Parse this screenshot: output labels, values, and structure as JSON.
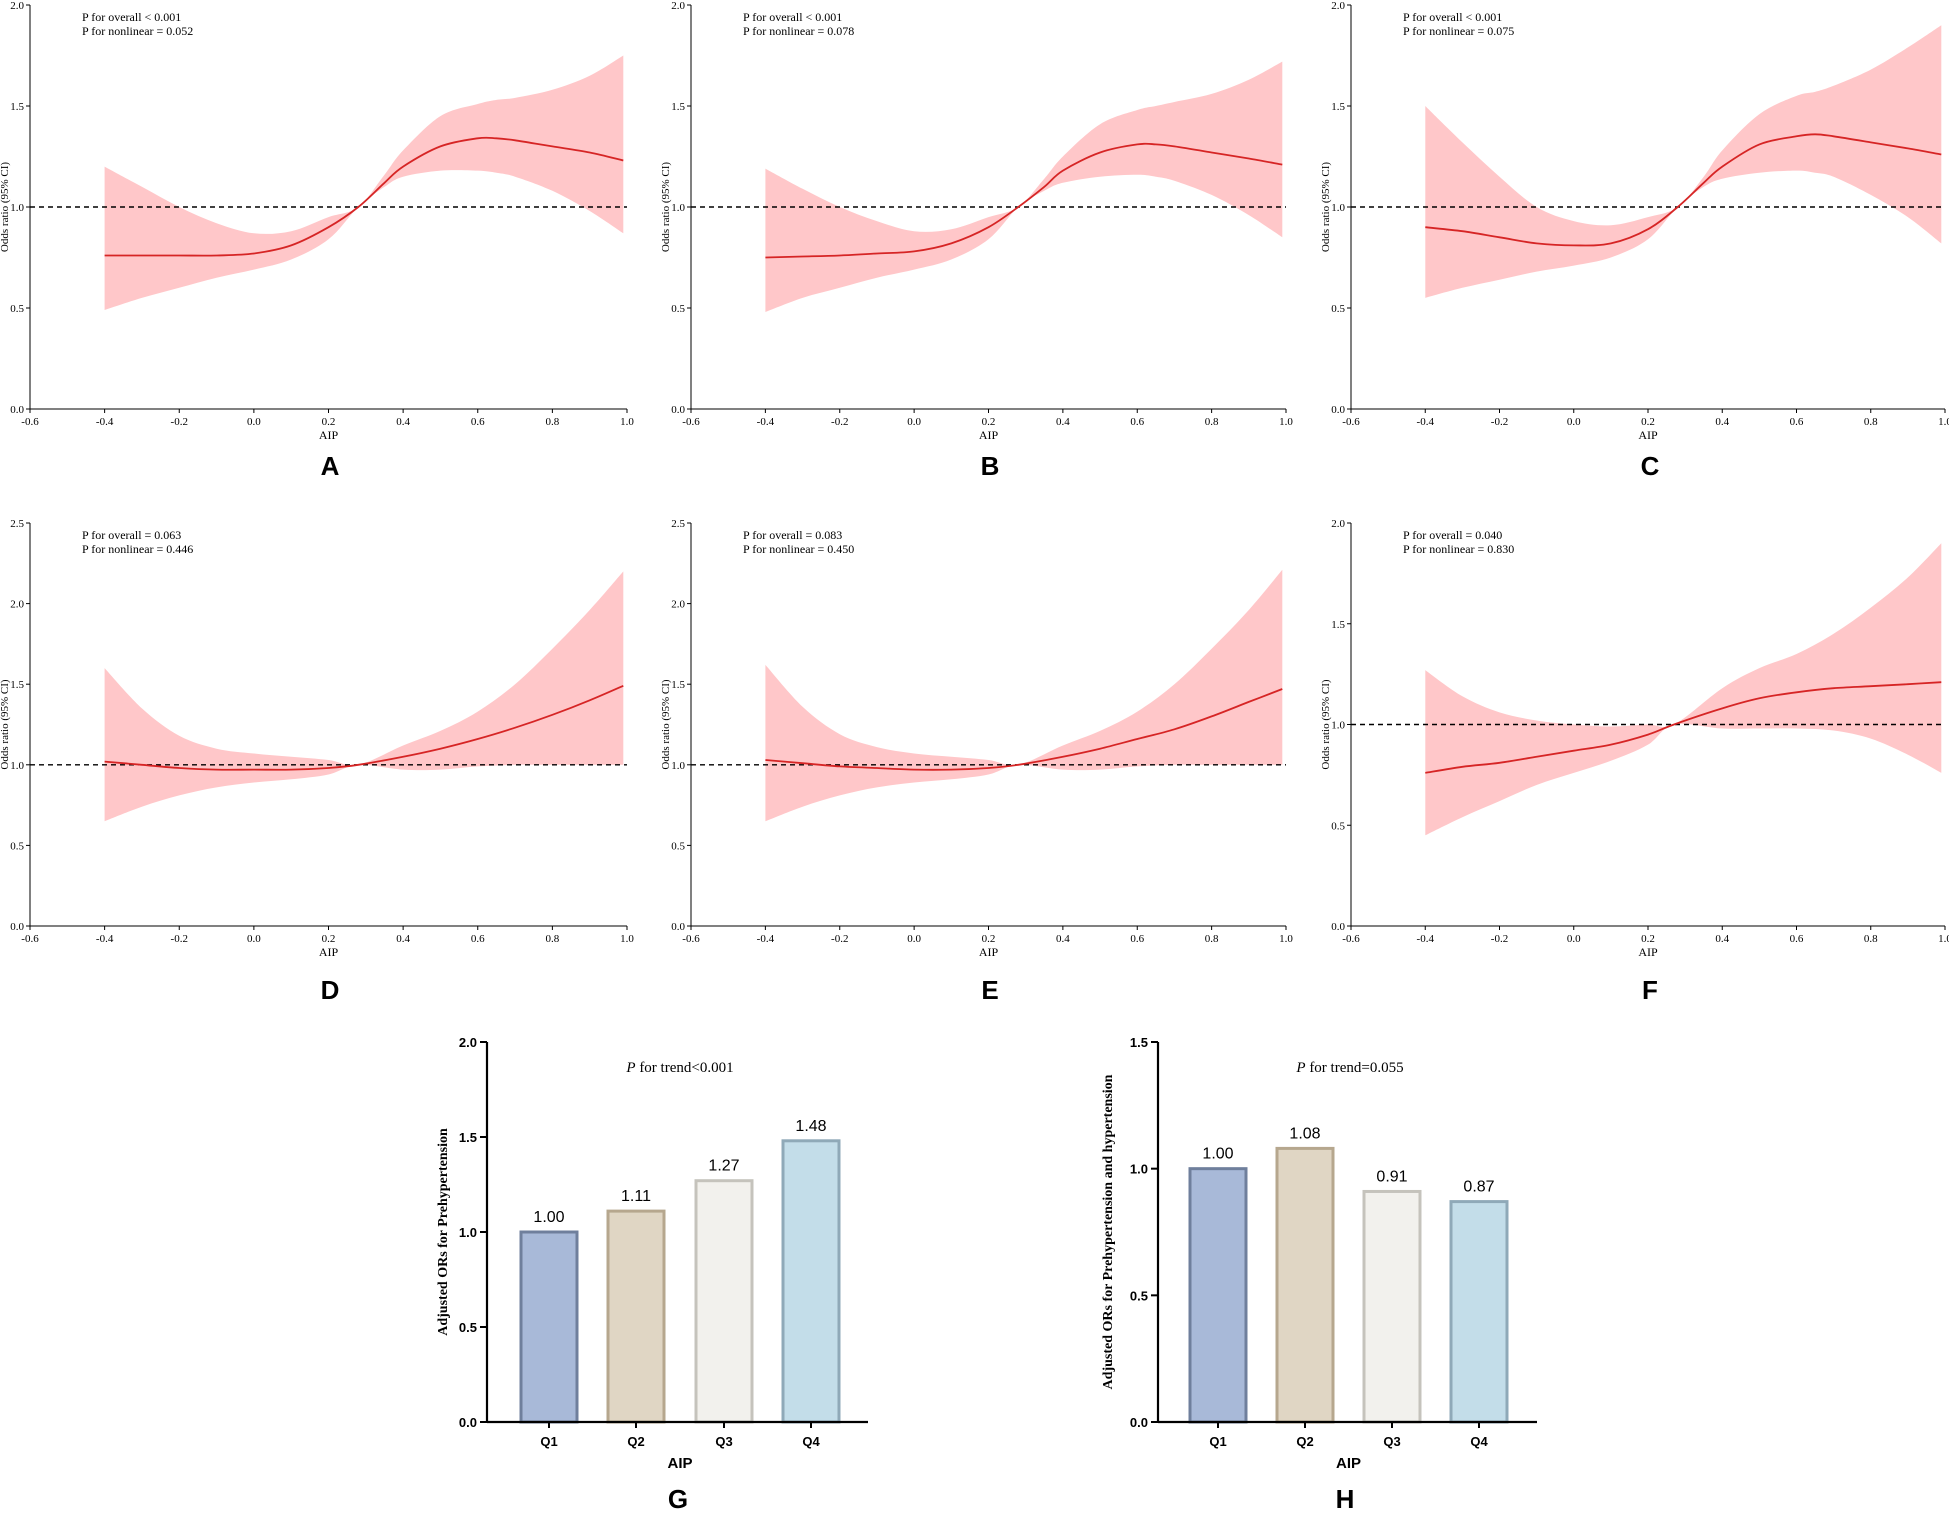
{
  "colors": {
    "band": "#ffc7c9",
    "line": "#d62525",
    "ref": "#000000",
    "axis": "#000000"
  },
  "chart_data": [
    {
      "panel": "A",
      "type": "line",
      "xlabel": "AIP",
      "ylabel": "Odds ratio (95% CI)",
      "xlim": [
        -0.6,
        1.0
      ],
      "ylim": [
        0.0,
        2.0
      ],
      "xticks": [
        "-0.6",
        "-0.4",
        "-0.2",
        "0.0",
        "0.2",
        "0.4",
        "0.6",
        "0.8",
        "1.0"
      ],
      "yticks": [
        "0.0",
        "0.5",
        "1.0",
        "1.5",
        "2.0"
      ],
      "annotation": [
        "P for overall < 0.001",
        "P for nonlinear = 0.052"
      ],
      "reference_line": 1.0,
      "x": [
        -0.4,
        -0.3,
        -0.2,
        -0.1,
        0.0,
        0.1,
        0.2,
        0.28,
        0.35,
        0.4,
        0.5,
        0.6,
        0.65,
        0.7,
        0.8,
        0.9,
        0.99
      ],
      "y": [
        0.76,
        0.76,
        0.76,
        0.76,
        0.77,
        0.81,
        0.9,
        1.0,
        1.12,
        1.2,
        1.3,
        1.34,
        1.34,
        1.33,
        1.3,
        1.27,
        1.23
      ],
      "lower": [
        0.49,
        0.55,
        0.6,
        0.65,
        0.69,
        0.74,
        0.84,
        1.0,
        1.1,
        1.15,
        1.18,
        1.18,
        1.17,
        1.15,
        1.08,
        0.98,
        0.87
      ],
      "upper": [
        1.2,
        1.1,
        1.0,
        0.92,
        0.87,
        0.88,
        0.95,
        1.0,
        1.16,
        1.28,
        1.45,
        1.51,
        1.53,
        1.54,
        1.58,
        1.65,
        1.75
      ]
    },
    {
      "panel": "B",
      "type": "line",
      "xlabel": "AIP",
      "ylabel": "Odds ratio (95% CI)",
      "xlim": [
        -0.6,
        1.0
      ],
      "ylim": [
        0.0,
        2.0
      ],
      "xticks": [
        "-0.6",
        "-0.4",
        "-0.2",
        "0.0",
        "0.2",
        "0.4",
        "0.6",
        "0.8",
        "1.0"
      ],
      "yticks": [
        "0.0",
        "0.5",
        "1.0",
        "1.5",
        "2.0"
      ],
      "annotation": [
        "P for overall < 0.001",
        "P for nonlinear = 0.078"
      ],
      "reference_line": 1.0,
      "x": [
        -0.4,
        -0.3,
        -0.2,
        -0.1,
        0.0,
        0.1,
        0.2,
        0.28,
        0.35,
        0.4,
        0.5,
        0.6,
        0.65,
        0.7,
        0.8,
        0.9,
        0.99
      ],
      "y": [
        0.75,
        0.755,
        0.76,
        0.77,
        0.78,
        0.82,
        0.9,
        1.0,
        1.1,
        1.18,
        1.27,
        1.31,
        1.31,
        1.3,
        1.27,
        1.24,
        1.21
      ],
      "lower": [
        0.48,
        0.55,
        0.6,
        0.65,
        0.69,
        0.74,
        0.84,
        1.0,
        1.08,
        1.12,
        1.15,
        1.16,
        1.15,
        1.13,
        1.06,
        0.96,
        0.85
      ],
      "upper": [
        1.19,
        1.09,
        1.0,
        0.93,
        0.88,
        0.89,
        0.95,
        1.0,
        1.14,
        1.25,
        1.41,
        1.48,
        1.5,
        1.52,
        1.56,
        1.63,
        1.72
      ]
    },
    {
      "panel": "C",
      "type": "line",
      "xlabel": "AIP",
      "ylabel": "Odds ratio (95% CI)",
      "xlim": [
        -0.6,
        1.0
      ],
      "ylim": [
        0.0,
        2.0
      ],
      "xticks": [
        "-0.6",
        "-0.4",
        "-0.2",
        "0.0",
        "0.2",
        "0.4",
        "0.6",
        "0.8",
        "1.0"
      ],
      "yticks": [
        "0.0",
        "0.5",
        "1.0",
        "1.5",
        "2.0"
      ],
      "annotation": [
        "P for overall < 0.001",
        "P for nonlinear = 0.075"
      ],
      "reference_line": 1.0,
      "x": [
        -0.4,
        -0.3,
        -0.2,
        -0.1,
        0.0,
        0.1,
        0.2,
        0.28,
        0.35,
        0.4,
        0.5,
        0.6,
        0.65,
        0.7,
        0.8,
        0.9,
        0.99
      ],
      "y": [
        0.9,
        0.88,
        0.85,
        0.82,
        0.81,
        0.82,
        0.89,
        1.0,
        1.12,
        1.2,
        1.31,
        1.35,
        1.36,
        1.35,
        1.32,
        1.29,
        1.26
      ],
      "lower": [
        0.55,
        0.6,
        0.64,
        0.68,
        0.71,
        0.75,
        0.84,
        1.0,
        1.1,
        1.14,
        1.17,
        1.18,
        1.17,
        1.15,
        1.06,
        0.95,
        0.82
      ],
      "upper": [
        1.5,
        1.32,
        1.15,
        1.0,
        0.93,
        0.91,
        0.95,
        1.0,
        1.15,
        1.28,
        1.46,
        1.55,
        1.57,
        1.6,
        1.68,
        1.79,
        1.9
      ]
    },
    {
      "panel": "D",
      "type": "line",
      "xlabel": "AIP",
      "ylabel": "Odds ratio (95% CI)",
      "xlim": [
        -0.6,
        1.0
      ],
      "ylim": [
        0.0,
        2.5
      ],
      "xticks": [
        "-0.6",
        "-0.4",
        "-0.2",
        "0.0",
        "0.2",
        "0.4",
        "0.6",
        "0.8",
        "1.0"
      ],
      "yticks": [
        "0.0",
        "0.5",
        "1.0",
        "1.5",
        "2.0",
        "2.5"
      ],
      "annotation": [
        "P for overall = 0.063",
        "P for nonlinear = 0.446"
      ],
      "reference_line": 1.0,
      "x": [
        -0.4,
        -0.3,
        -0.2,
        -0.1,
        0.0,
        0.1,
        0.2,
        0.28,
        0.4,
        0.5,
        0.6,
        0.7,
        0.8,
        0.9,
        0.99
      ],
      "y": [
        1.02,
        1.0,
        0.98,
        0.97,
        0.97,
        0.97,
        0.98,
        1.0,
        1.05,
        1.1,
        1.16,
        1.23,
        1.31,
        1.4,
        1.49
      ],
      "lower": [
        0.65,
        0.74,
        0.81,
        0.86,
        0.89,
        0.91,
        0.94,
        1.0,
        0.97,
        0.97,
        0.99,
        1.0,
        1.0,
        1.0,
        1.0
      ],
      "upper": [
        1.6,
        1.35,
        1.18,
        1.1,
        1.07,
        1.05,
        1.03,
        1.0,
        1.12,
        1.21,
        1.33,
        1.5,
        1.72,
        1.96,
        2.2
      ]
    },
    {
      "panel": "E",
      "type": "line",
      "xlabel": "AIP",
      "ylabel": "Odds ratio (95% CI)",
      "xlim": [
        -0.6,
        1.0
      ],
      "ylim": [
        0.0,
        2.5
      ],
      "xticks": [
        "-0.6",
        "-0.4",
        "-0.2",
        "0.0",
        "0.2",
        "0.4",
        "0.6",
        "0.8",
        "1.0"
      ],
      "yticks": [
        "0.0",
        "0.5",
        "1.0",
        "1.5",
        "2.0",
        "2.5"
      ],
      "annotation": [
        "P for overall = 0.083",
        "P for nonlinear = 0.450"
      ],
      "reference_line": 1.0,
      "x": [
        -0.4,
        -0.3,
        -0.2,
        -0.1,
        0.0,
        0.1,
        0.2,
        0.28,
        0.4,
        0.5,
        0.6,
        0.7,
        0.8,
        0.9,
        0.99
      ],
      "y": [
        1.03,
        1.01,
        0.99,
        0.98,
        0.97,
        0.97,
        0.98,
        1.0,
        1.05,
        1.1,
        1.16,
        1.22,
        1.3,
        1.39,
        1.47
      ],
      "lower": [
        0.65,
        0.74,
        0.81,
        0.86,
        0.89,
        0.91,
        0.94,
        1.0,
        0.97,
        0.97,
        0.99,
        1.0,
        1.0,
        1.0,
        1.0
      ],
      "upper": [
        1.62,
        1.36,
        1.19,
        1.11,
        1.07,
        1.05,
        1.03,
        1.0,
        1.12,
        1.21,
        1.33,
        1.5,
        1.72,
        1.96,
        2.21
      ]
    },
    {
      "panel": "F",
      "type": "line",
      "xlabel": "AIP",
      "ylabel": "Odds ratio (95% CI)",
      "xlim": [
        -0.6,
        1.0
      ],
      "ylim": [
        0.0,
        2.0
      ],
      "xticks": [
        "-0.6",
        "-0.4",
        "-0.2",
        "0.0",
        "0.2",
        "0.4",
        "0.6",
        "0.8",
        "1.0"
      ],
      "yticks": [
        "0.0",
        "0.5",
        "1.0",
        "1.5",
        "2.0"
      ],
      "annotation": [
        "P for overall = 0.040",
        "P for nonlinear = 0.830"
      ],
      "reference_line": 1.0,
      "x": [
        -0.4,
        -0.3,
        -0.2,
        -0.1,
        0.0,
        0.1,
        0.2,
        0.27,
        0.4,
        0.5,
        0.6,
        0.7,
        0.8,
        0.9,
        0.99
      ],
      "y": [
        0.76,
        0.79,
        0.81,
        0.84,
        0.87,
        0.9,
        0.95,
        1.0,
        1.08,
        1.13,
        1.16,
        1.18,
        1.19,
        1.2,
        1.21
      ],
      "lower": [
        0.45,
        0.54,
        0.62,
        0.7,
        0.76,
        0.82,
        0.9,
        1.0,
        0.98,
        0.98,
        0.98,
        0.97,
        0.93,
        0.85,
        0.76
      ],
      "upper": [
        1.27,
        1.14,
        1.06,
        1.02,
        1.0,
        0.99,
        1.0,
        1.0,
        1.18,
        1.28,
        1.35,
        1.45,
        1.58,
        1.73,
        1.9
      ]
    },
    {
      "panel": "G",
      "type": "bar",
      "categories": [
        "Q1",
        "Q2",
        "Q3",
        "Q4"
      ],
      "values": [
        1.0,
        1.11,
        1.27,
        1.48
      ],
      "labels": [
        "1.00",
        "1.11",
        "1.27",
        "1.48"
      ],
      "xlabel": "AIP",
      "ylabel": "Adjusted ORs for Prehypertension",
      "ylim": [
        0.0,
        2.0
      ],
      "yticks": [
        "0.0",
        "0.5",
        "1.0",
        "1.5",
        "2.0"
      ],
      "trend_italic": "P",
      "trend_text": " for trend<0.001",
      "fills": [
        "#a8b9d8",
        "#e0d6c4",
        "#f2f1ed",
        "#c3dde9"
      ],
      "strokes": [
        "#6f7f9c",
        "#b6a78e",
        "#c5c3bc",
        "#8fa9b8"
      ]
    },
    {
      "panel": "H",
      "type": "bar",
      "categories": [
        "Q1",
        "Q2",
        "Q3",
        "Q4"
      ],
      "values": [
        1.0,
        1.08,
        0.91,
        0.87
      ],
      "labels": [
        "1.00",
        "1.08",
        "0.91",
        "0.87"
      ],
      "xlabel": "AIP",
      "ylabel": "Adjusted ORs for Prehypertension and hypertension",
      "ylim": [
        0.0,
        1.5
      ],
      "yticks": [
        "0.0",
        "0.5",
        "1.0",
        "1.5"
      ],
      "trend_italic": "P",
      "trend_text": " for trend=0.055",
      "fills": [
        "#a8b9d8",
        "#e0d6c4",
        "#f2f1ed",
        "#c3dde9"
      ],
      "strokes": [
        "#6f7f9c",
        "#b6a78e",
        "#c5c3bc",
        "#8fa9b8"
      ]
    }
  ]
}
